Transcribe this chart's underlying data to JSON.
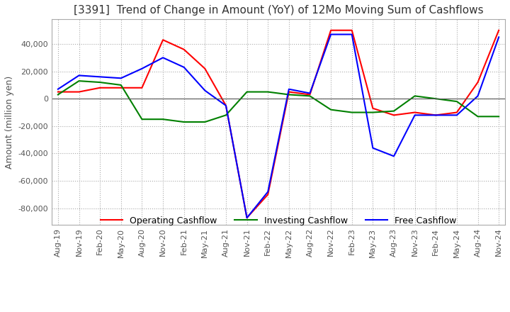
{
  "title": "[3391]  Trend of Change in Amount (YoY) of 12Mo Moving Sum of Cashflows",
  "ylabel": "Amount (million yen)",
  "x_labels": [
    "Aug-19",
    "Nov-19",
    "Feb-20",
    "May-20",
    "Aug-20",
    "Nov-20",
    "Feb-21",
    "May-21",
    "Aug-21",
    "Nov-21",
    "Feb-22",
    "May-22",
    "Aug-22",
    "Nov-22",
    "Feb-23",
    "May-23",
    "Aug-23",
    "Nov-23",
    "Feb-24",
    "May-24",
    "Aug-24",
    "Nov-24"
  ],
  "operating": [
    5000,
    5000,
    8000,
    8000,
    8000,
    43000,
    36000,
    22000,
    -5000,
    -87000,
    -70000,
    5000,
    3000,
    50000,
    50000,
    -7000,
    -12000,
    -10000,
    -12000,
    -10000,
    12000,
    50000
  ],
  "investing": [
    3000,
    13000,
    12000,
    10000,
    -15000,
    -15000,
    -17000,
    -17000,
    -12000,
    5000,
    5000,
    3000,
    2000,
    -8000,
    -10000,
    -10000,
    -9000,
    2000,
    0,
    -2000,
    -13000,
    -13000
  ],
  "free": [
    7000,
    17000,
    16000,
    15000,
    22000,
    30000,
    23000,
    6000,
    -5000,
    -87000,
    -68000,
    7000,
    4000,
    47000,
    47000,
    -36000,
    -42000,
    -12000,
    -12000,
    -12000,
    2000,
    45000
  ],
  "ylim": [
    -92000,
    58000
  ],
  "yticks": [
    -80000,
    -60000,
    -40000,
    -20000,
    0,
    20000,
    40000
  ],
  "colors": {
    "operating": "#ff0000",
    "investing": "#008000",
    "free": "#0000ff"
  },
  "grid_color": "#aaaaaa",
  "background_color": "#ffffff",
  "title_fontsize": 11,
  "tick_fontsize": 8,
  "legend_fontsize": 9
}
